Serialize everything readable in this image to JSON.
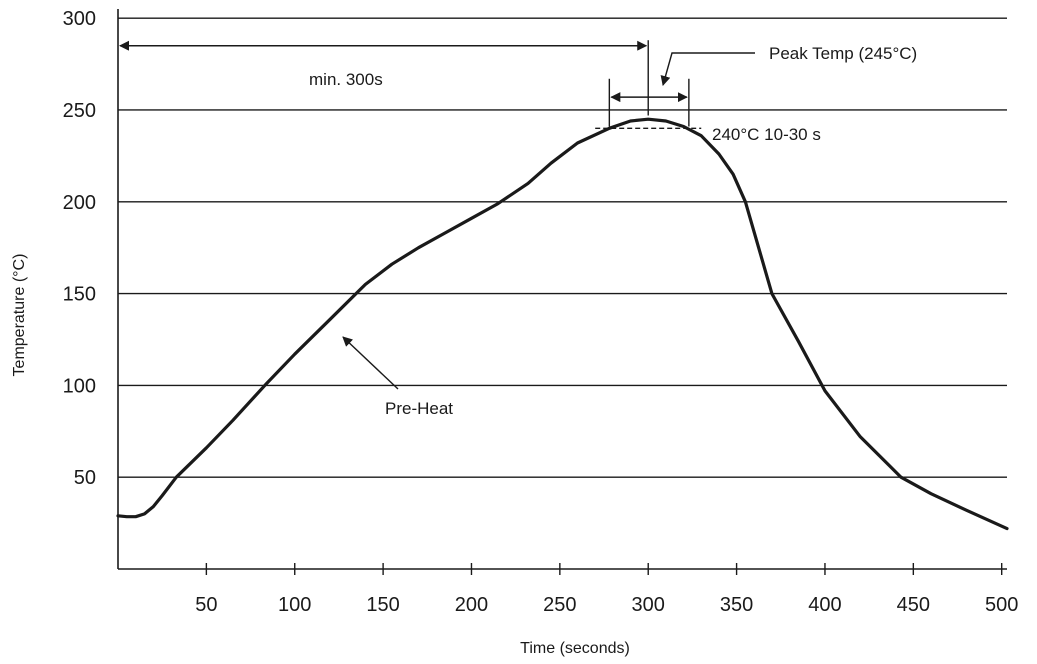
{
  "chart_data": {
    "type": "line",
    "title": "",
    "xlabel": "Time (seconds)",
    "ylabel": "Temperature (°C)",
    "xlim": [
      0,
      503
    ],
    "ylim": [
      0,
      305
    ],
    "x_ticks": [
      50,
      100,
      150,
      200,
      250,
      300,
      350,
      400,
      450,
      500
    ],
    "y_ticks": [
      50,
      100,
      150,
      200,
      250,
      300
    ],
    "grid": "horizontal",
    "legend": "none",
    "series": [
      {
        "name": "",
        "color": "#1a1a1a",
        "x": [
          0,
          5,
          10,
          15,
          20,
          25,
          33,
          50,
          65,
          84,
          100,
          120,
          140,
          155,
          170,
          185,
          200,
          215,
          232,
          245,
          260,
          278,
          290,
          300,
          310,
          320,
          330,
          340,
          348,
          355,
          370,
          385,
          400,
          420,
          443,
          460,
          480,
          503
        ],
        "y": [
          29,
          28.5,
          28.5,
          30,
          34,
          40,
          50,
          66,
          81,
          101,
          117,
          136,
          155,
          166,
          175,
          183,
          191,
          199,
          210,
          221,
          232,
          240,
          244,
          245,
          244,
          241,
          236,
          226,
          215,
          200,
          150,
          124,
          97,
          72,
          50,
          41,
          32,
          22
        ]
      }
    ],
    "annotations": {
      "min_duration": {
        "text": "min. 300s",
        "x_start": 0,
        "x_end": 300
      },
      "peak": {
        "text": "Peak Temp (245°C)",
        "x": 300
      },
      "window": {
        "text": "240°C  10-30 s",
        "y": 240,
        "x_start": 270,
        "x_end": 330,
        "arrow_start": 278,
        "arrow_end": 323
      },
      "preheat": {
        "text": "Pre-Heat",
        "x": 125,
        "y": 128
      }
    }
  }
}
